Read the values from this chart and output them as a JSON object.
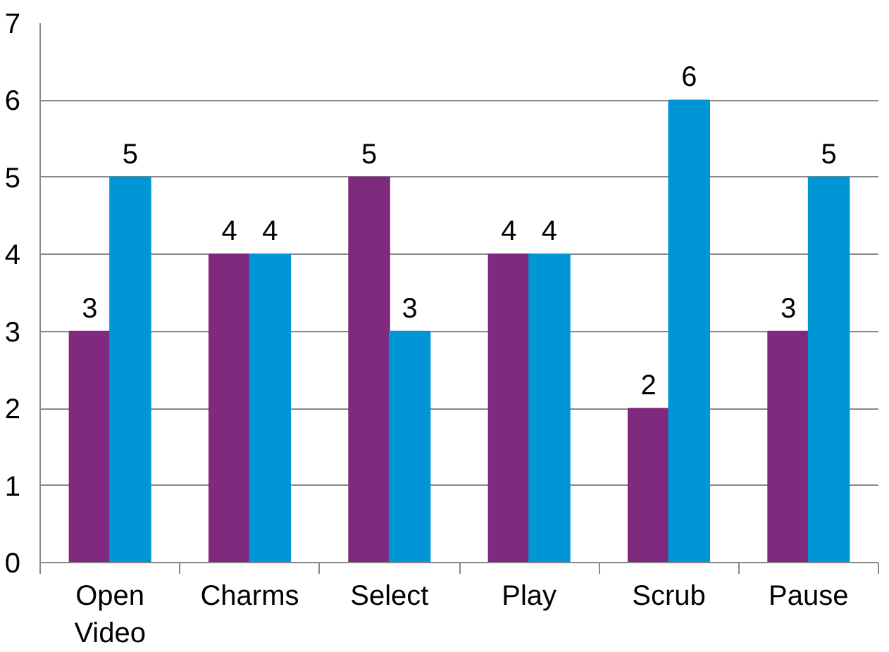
{
  "chart_data": {
    "type": "bar",
    "categories": [
      "Open Video",
      "Charms",
      "Select",
      "Play",
      "Scrub",
      "Pause"
    ],
    "series": [
      {
        "color": "#7f2a7e",
        "values": [
          3,
          4,
          5,
          4,
          2,
          3
        ]
      },
      {
        "color": "#0096d6",
        "values": [
          5,
          4,
          3,
          4,
          6,
          5
        ]
      }
    ],
    "ylim": [
      0,
      7
    ],
    "yticks": [
      0,
      1,
      2,
      3,
      4,
      5,
      6,
      7
    ],
    "grid": "y",
    "data_labels": true
  }
}
